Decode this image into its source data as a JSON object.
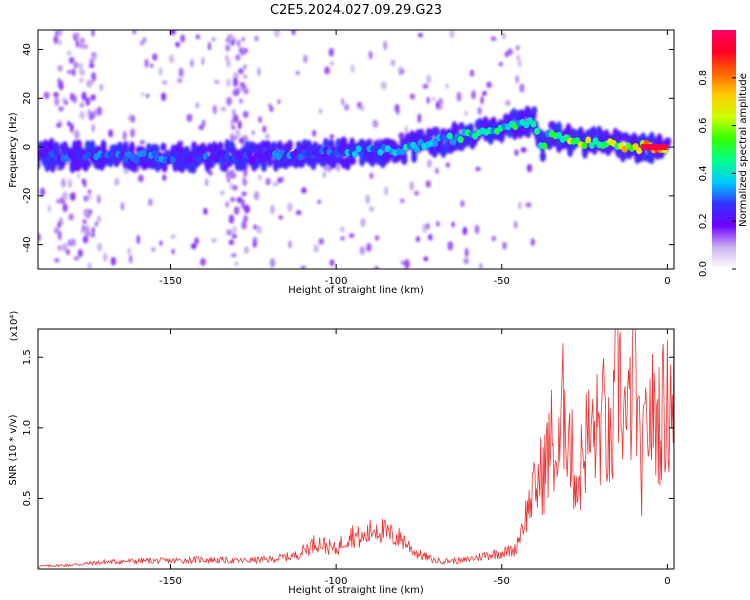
{
  "title": "C2E5.2024.027.09.29.G23",
  "chart_data": [
    {
      "type": "heatmap",
      "xlabel": "Height of straight line (km)",
      "ylabel": "Frequency (Hz)",
      "xlim": [
        -190,
        2
      ],
      "ylim": [
        -50,
        48
      ],
      "xticks": [
        -150,
        -100,
        -50,
        0
      ],
      "yticks": [
        -40,
        -20,
        0,
        20,
        40
      ],
      "colorbar": {
        "label": "Normalized spectral amplitude",
        "ticks": [
          0.0,
          0.2,
          0.4,
          0.6,
          0.8
        ],
        "range": [
          0,
          1
        ],
        "colors": [
          "#ffffff",
          "#ccb3f0",
          "#6e00ff",
          "#3333ff",
          "#00ccff",
          "#00ff88",
          "#33ff00",
          "#ccff00",
          "#ffcc00",
          "#ff6600",
          "#ff0022",
          "#ff0066"
        ]
      },
      "ridge": {
        "x": [
          -190,
          -170,
          -150,
          -130,
          -110,
          -90,
          -80,
          -70,
          -60,
          -50,
          -45,
          -40,
          -38,
          -35,
          -30,
          -25,
          -20,
          -15,
          -10,
          -5,
          0
        ],
        "freq": [
          -3,
          -4,
          -4,
          -4,
          -3,
          -2,
          -1,
          2,
          5,
          8,
          10,
          11,
          0,
          6,
          3,
          2,
          2,
          1,
          0,
          0,
          0
        ],
        "amplitude": [
          0.3,
          0.35,
          0.35,
          0.3,
          0.35,
          0.4,
          0.45,
          0.45,
          0.5,
          0.5,
          0.55,
          0.45,
          0.5,
          0.55,
          0.65,
          0.75,
          0.6,
          0.7,
          0.9,
          0.95,
          0.95
        ]
      }
    },
    {
      "type": "line",
      "xlabel": "Height of straight line (km)",
      "ylabel": "SNR (10 * v/v)",
      "multiplier": "(x10⁴)",
      "xlim": [
        -190,
        2
      ],
      "ylim": [
        0,
        1.7
      ],
      "xticks": [
        -150,
        -100,
        -50,
        0
      ],
      "yticks": [
        0.5,
        1.0,
        1.5
      ],
      "series": [
        {
          "color": "#ee3333",
          "x": [
            -190,
            -180,
            -170,
            -160,
            -150,
            -140,
            -130,
            -120,
            -112,
            -106,
            -100,
            -96,
            -92,
            -88,
            -86,
            -84,
            -80,
            -76,
            -70,
            -62,
            -55,
            -50,
            -46,
            -44,
            -40,
            -37,
            -35,
            -33,
            -31,
            -29,
            -27,
            -25,
            -22,
            -19,
            -17,
            -15,
            -12,
            -10,
            -8,
            -6,
            -3,
            0,
            2
          ],
          "y": [
            0.02,
            0.03,
            0.05,
            0.06,
            0.06,
            0.07,
            0.06,
            0.07,
            0.1,
            0.2,
            0.14,
            0.26,
            0.22,
            0.31,
            0.28,
            0.25,
            0.22,
            0.12,
            0.06,
            0.06,
            0.1,
            0.12,
            0.14,
            0.3,
            0.6,
            0.75,
            0.95,
            0.75,
            1.3,
            0.85,
            0.6,
            0.95,
            1.0,
            1.1,
            0.8,
            1.5,
            1.0,
            1.62,
            0.65,
            1.15,
            1.1,
            1.2,
            1.45
          ]
        }
      ]
    }
  ]
}
